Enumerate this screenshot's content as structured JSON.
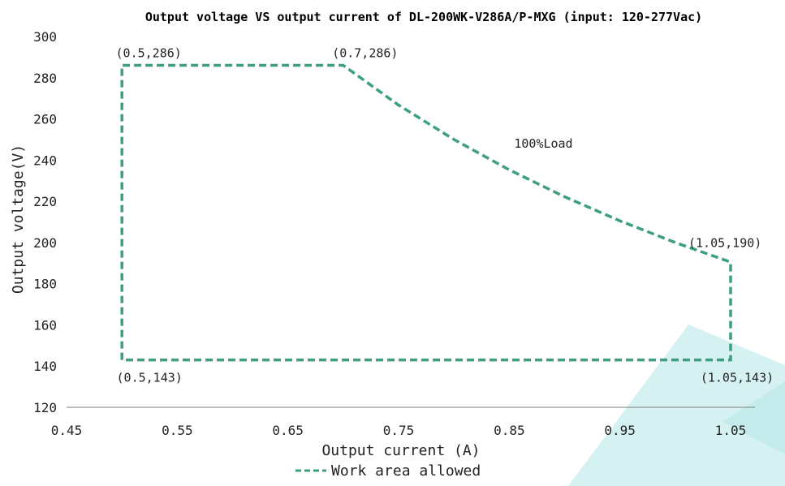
{
  "chart_data": {
    "type": "line",
    "title": "Output voltage VS output current of DL-200WK-V286A/P-MXG (input: 120-277Vac)",
    "xlabel": "Output current (A)",
    "ylabel": "Output voltage(V)",
    "xlim": [
      0.45,
      1.05
    ],
    "ylim": [
      120,
      300
    ],
    "xticks": [
      0.45,
      0.55,
      0.65,
      0.75,
      0.85,
      0.95,
      1.05
    ],
    "xtick_labels": [
      "0.45",
      "0.55",
      "0.65",
      "0.75",
      "0.85",
      "0.95",
      "1.05"
    ],
    "yticks": [
      120,
      140,
      160,
      180,
      200,
      220,
      240,
      260,
      280,
      300
    ],
    "ytick_labels": [
      "120",
      "140",
      "160",
      "180",
      "200",
      "220",
      "240",
      "260",
      "280",
      "300"
    ],
    "grid": false,
    "legend": "bottom",
    "series": [
      {
        "name": "Work area allowed",
        "color": "#3c9e82",
        "style": "dashed",
        "x": [
          0.5,
          0.5,
          0.7,
          0.75,
          0.8,
          0.85,
          0.9,
          0.95,
          1.0,
          1.05,
          1.05,
          0.5
        ],
        "y": [
          143,
          286,
          286,
          266.7,
          250,
          235.3,
          222.2,
          210.5,
          200,
          190.5,
          143,
          143
        ]
      }
    ],
    "annotations": [
      {
        "text": "(0.5,286)",
        "x": 0.5,
        "y": 286,
        "pos": "above"
      },
      {
        "text": "(0.7,286)",
        "x": 0.7,
        "y": 286,
        "pos": "above"
      },
      {
        "text": "100%Load",
        "x": 0.85,
        "y": 235,
        "pos": "right"
      },
      {
        "text": "(1.05,190)",
        "x": 1.05,
        "y": 190,
        "pos": "above-left"
      },
      {
        "text": "(0.5,143)",
        "x": 0.5,
        "y": 143,
        "pos": "below"
      },
      {
        "text": "(1.05,143)",
        "x": 1.05,
        "y": 143,
        "pos": "below"
      }
    ]
  },
  "watermark_color": "#d6f1f1"
}
